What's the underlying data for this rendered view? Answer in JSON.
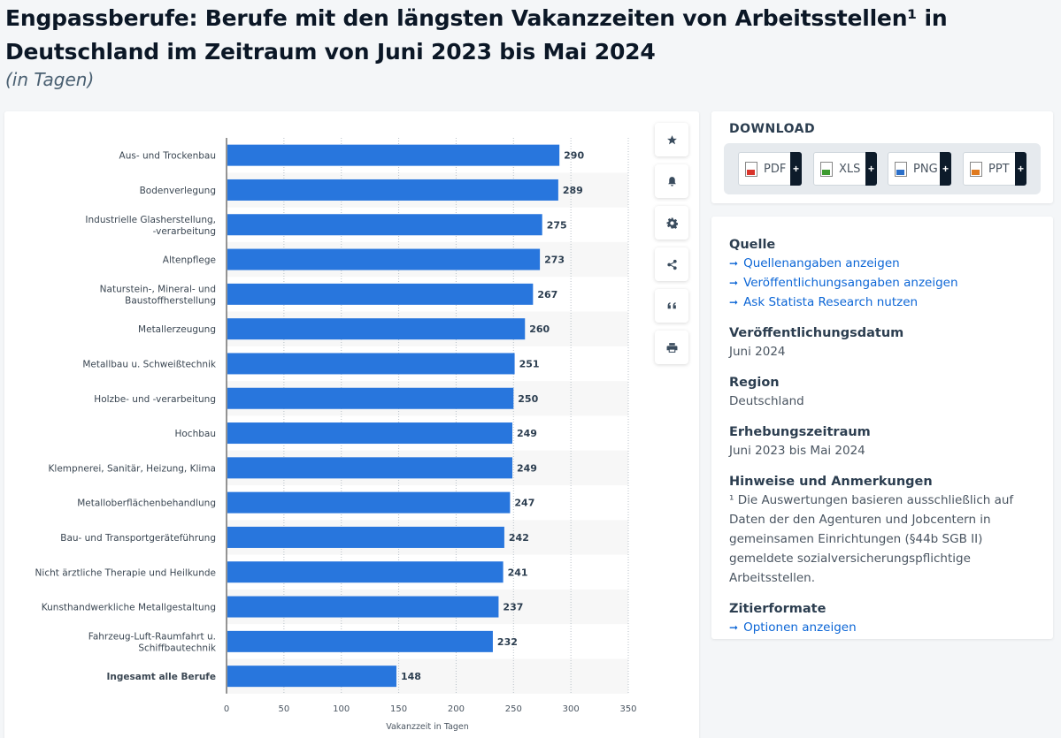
{
  "header": {
    "title": "Engpassberufe: Berufe mit den längsten Vakanzzeiten von Arbeitsstellen¹ in Deutschland im Zeitraum von Juni 2023 bis Mai 2024",
    "subtitle": "(in Tagen)"
  },
  "chart_data": {
    "type": "bar",
    "orientation": "horizontal",
    "categories": [
      "Aus- und Trockenbau",
      "Bodenverlegung",
      "Industrielle Glasherstellung, -verarbeitung",
      "Altenpflege",
      "Naturstein-, Mineral- und Baustoffherstellung",
      "Metallerzeugung",
      "Metallbau u. Schweißtechnik",
      "Holzbe- und -verarbeitung",
      "Hochbau",
      "Klempnerei, Sanitär, Heizung, Klima",
      "Metalloberflächenbehandlung",
      "Bau- und Transportgeräteführung",
      "Nicht ärztliche Therapie und Heilkunde",
      "Kunsthandwerkliche Metallgestaltung",
      "Fahrzeug-Luft-Raumfahrt u. Schiffbautechnik",
      "Ingesamt alle Berufe"
    ],
    "category_lines": [
      [
        "Aus- und Trockenbau"
      ],
      [
        "Bodenverlegung"
      ],
      [
        "Industrielle Glasherstellung,",
        "-verarbeitung"
      ],
      [
        "Altenpflege"
      ],
      [
        "Naturstein-, Mineral- und",
        "Baustoffherstellung"
      ],
      [
        "Metallerzeugung"
      ],
      [
        "Metallbau u. Schweißtechnik"
      ],
      [
        "Holzbe- und -verarbeitung"
      ],
      [
        "Hochbau"
      ],
      [
        "Klempnerei, Sanitär, Heizung, Klima"
      ],
      [
        "Metalloberflächenbehandlung"
      ],
      [
        "Bau- und Transportgeräteführung"
      ],
      [
        "Nicht ärztliche Therapie und Heilkunde"
      ],
      [
        "Kunsthandwerkliche Metallgestaltung"
      ],
      [
        "Fahrzeug-Luft-Raumfahrt u.",
        "Schiffbautechnik"
      ],
      [
        "Ingesamt alle Berufe"
      ]
    ],
    "bold_categories": [
      "Ingesamt alle Berufe"
    ],
    "values": [
      290,
      289,
      275,
      273,
      267,
      260,
      251,
      250,
      249,
      249,
      247,
      242,
      241,
      237,
      232,
      148
    ],
    "xlabel": "Vakanzzeit in Tagen",
    "xlim": [
      0,
      350
    ],
    "xticks": [
      0,
      50,
      100,
      150,
      200,
      250,
      300,
      350
    ],
    "grid": true,
    "bar_color": "#2876dd",
    "stripe_color": "#f7f7f7"
  },
  "toolbar": {
    "icons": [
      "star-icon",
      "bell-icon",
      "gear-icon",
      "share-icon",
      "quote-icon",
      "print-icon"
    ]
  },
  "download": {
    "title": "DOWNLOAD",
    "buttons": [
      {
        "label": "PDF",
        "color": "#d9342b"
      },
      {
        "label": "XLS",
        "color": "#3d9a2f"
      },
      {
        "label": "PNG",
        "color": "#2b6fc9"
      },
      {
        "label": "PPT",
        "color": "#e07a1f"
      }
    ],
    "plus": "+"
  },
  "info": {
    "source_head": "Quelle",
    "source_links": [
      "Quellenangaben anzeigen",
      "Veröffentlichungsangaben anzeigen",
      "Ask Statista Research nutzen"
    ],
    "date_head": "Veröffentlichungsdatum",
    "date_value": "Juni 2024",
    "region_head": "Region",
    "region_value": "Deutschland",
    "period_head": "Erhebungszeitraum",
    "period_value": "Juni 2023 bis Mai 2024",
    "notes_head": "Hinweise und Anmerkungen",
    "notes_value": "¹ Die Auswertungen basieren ausschließlich auf Daten der den Agenturen und Jobcentern in gemeinsamen Einrichtungen (§44b SGB II) gemeldete sozialversicherungspflichtige Arbeitsstellen.",
    "cite_head": "Zitierformate",
    "cite_link": "Optionen anzeigen",
    "arrow": "➞"
  }
}
